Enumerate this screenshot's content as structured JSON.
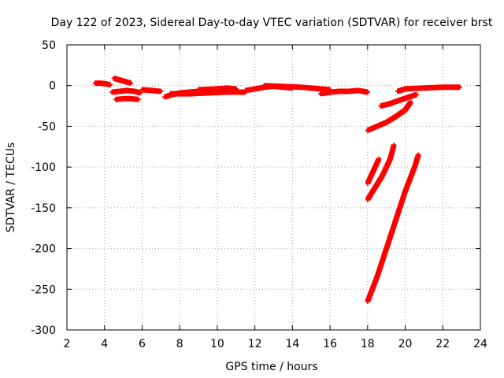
{
  "chart_data": {
    "type": "scatter",
    "title": "Day 122 of 2023, Sidereal Day-to-day VTEC variation (SDTVAR) for receiver brst",
    "xlabel": "GPS time / hours",
    "ylabel": "SDTVAR / TECUs",
    "xlim": [
      2,
      24
    ],
    "ylim": [
      -300,
      50
    ],
    "xticks": [
      2,
      4,
      6,
      8,
      10,
      12,
      14,
      16,
      18,
      20,
      22,
      24
    ],
    "yticks": [
      50,
      0,
      -50,
      -100,
      -150,
      -200,
      -250,
      -300
    ],
    "grid": true,
    "legend": "none",
    "series_color": "#ff0000",
    "series": [
      {
        "x": [
          3.5,
          3.8,
          4.1,
          4.3
        ],
        "y": [
          3,
          3,
          2,
          1
        ]
      },
      {
        "x": [
          4.5,
          4.8,
          5.1,
          5.4
        ],
        "y": [
          9,
          7,
          5,
          3
        ]
      },
      {
        "x": [
          4.4,
          4.8,
          5.2,
          5.6,
          5.9
        ],
        "y": [
          -8,
          -7,
          -6,
          -7,
          -9
        ]
      },
      {
        "x": [
          4.6,
          5.0,
          5.4,
          5.8
        ],
        "y": [
          -17,
          -16,
          -16,
          -17
        ]
      },
      {
        "x": [
          6.0,
          6.5,
          7.0
        ],
        "y": [
          -5,
          -6,
          -7
        ]
      },
      {
        "x": [
          7.2,
          7.6,
          8.0,
          8.5,
          9.0
        ],
        "y": [
          -14,
          -11,
          -9,
          -8,
          -7
        ]
      },
      {
        "x": [
          7.5,
          8.5,
          9.5,
          10.5,
          11.5
        ],
        "y": [
          -10,
          -10,
          -9,
          -8,
          -8
        ]
      },
      {
        "x": [
          9.0,
          10.0,
          10.5,
          11.0
        ],
        "y": [
          -5,
          -4,
          -3,
          -4
        ]
      },
      {
        "x": [
          11.5,
          12.0,
          12.5,
          13.0,
          13.5,
          14.0
        ],
        "y": [
          -6,
          -4,
          -2,
          -1,
          -2,
          -3
        ]
      },
      {
        "x": [
          12.5,
          13.5,
          14.5,
          15.5,
          16.0
        ],
        "y": [
          0,
          -1,
          -2,
          -4,
          -5
        ]
      },
      {
        "x": [
          15.5,
          16.0,
          16.5,
          17.0,
          17.5,
          18.0
        ],
        "y": [
          -10,
          -8,
          -7,
          -7,
          -6,
          -8
        ]
      },
      {
        "x": [
          18.0,
          18.5,
          19.0,
          19.5,
          20.0,
          20.3
        ],
        "y": [
          -55,
          -50,
          -45,
          -38,
          -30,
          -20
        ]
      },
      {
        "x": [
          18.7,
          19.2,
          19.7,
          20.2,
          20.6
        ],
        "y": [
          -25,
          -22,
          -18,
          -14,
          -11
        ]
      },
      {
        "x": [
          19.6,
          20.0,
          21.0,
          22.0,
          22.9
        ],
        "y": [
          -7,
          -4,
          -3,
          -2,
          -2
        ]
      },
      {
        "x": [
          18.0,
          18.2,
          18.4,
          18.6
        ],
        "y": [
          -120,
          -110,
          -100,
          -90
        ]
      },
      {
        "x": [
          18.0,
          18.4,
          18.8,
          19.2,
          19.4
        ],
        "y": [
          -140,
          -125,
          -110,
          -90,
          -73
        ]
      },
      {
        "x": [
          18.0,
          18.5,
          19.0,
          19.5,
          20.0,
          20.5,
          20.7
        ],
        "y": [
          -265,
          -235,
          -200,
          -165,
          -130,
          -100,
          -85
        ]
      }
    ]
  }
}
